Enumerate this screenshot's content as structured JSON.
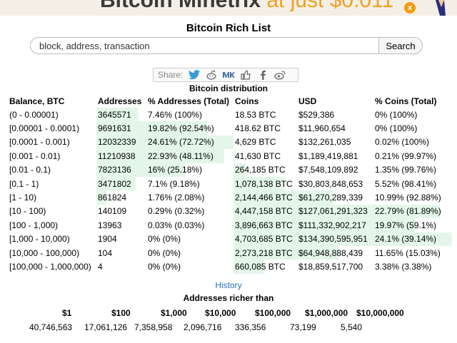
{
  "banner": {
    "text_main": "Bitcoin Minetrix",
    "text_accent": " at just $0.011",
    "close_symbol": "x"
  },
  "page_title": "Bitcoin Rich List",
  "search": {
    "placeholder": "block, address, transaction",
    "button_label": "Search"
  },
  "share": {
    "label": "Share:",
    "icons": [
      "twitter-icon",
      "reddit-icon",
      "vk-icon",
      "like-icon",
      "facebook-icon",
      "weibo-icon"
    ]
  },
  "distribution": {
    "caption": "Bitcoin distribution",
    "headers": [
      "Balance, BTC",
      "Addresses",
      "% Addresses (Total)",
      "Coins",
      "USD",
      "% Coins (Total)"
    ],
    "rows": [
      {
        "balance": "(0 - 0.00001)",
        "addresses": "3645571",
        "pct_addresses": "7.46% (100%)",
        "coins": "18.53 BTC",
        "usd": "$529,386",
        "pct_coins": "0% (100%)",
        "addr_share": 0.075,
        "coin_share": 0.0
      },
      {
        "balance": "[0.00001 - 0.0001)",
        "addresses": "9691631",
        "pct_addresses": "19.82% (92.54%)",
        "coins": "418.62 BTC",
        "usd": "$11,960,654",
        "pct_coins": "0% (100%)",
        "addr_share": 0.198,
        "coin_share": 0.0
      },
      {
        "balance": "[0.0001 - 0.001)",
        "addresses": "12032339",
        "pct_addresses": "24.61% (72.72%)",
        "coins": "4,629 BTC",
        "usd": "$132,261,035",
        "pct_coins": "0.02% (100%)",
        "addr_share": 0.246,
        "coin_share": 0.0002
      },
      {
        "balance": "[0.001 - 0.01)",
        "addresses": "11210938",
        "pct_addresses": "22.93% (48.11%)",
        "coins": "41,630 BTC",
        "usd": "$1,189,419,881",
        "pct_coins": "0.21% (99.97%)",
        "addr_share": 0.229,
        "coin_share": 0.0021
      },
      {
        "balance": "[0.01 - 0.1)",
        "addresses": "7823136",
        "pct_addresses": "16% (25.18%)",
        "coins": "264,185 BTC",
        "usd": "$7,548,109,892",
        "pct_coins": "1.35% (99.76%)",
        "addr_share": 0.16,
        "coin_share": 0.0135
      },
      {
        "balance": "[0.1 - 1)",
        "addresses": "3471802",
        "pct_addresses": "7.1% (9.18%)",
        "coins": "1,078,138 BTC",
        "usd": "$30,803,848,653",
        "pct_coins": "5.52% (98.41%)",
        "addr_share": 0.071,
        "coin_share": 0.0552
      },
      {
        "balance": "[1 - 10)",
        "addresses": "861824",
        "pct_addresses": "1.76% (2.08%)",
        "coins": "2,144,466 BTC",
        "usd": "$61,270,289,339",
        "pct_coins": "10.99% (92.88%)",
        "addr_share": 0.0176,
        "coin_share": 0.1099
      },
      {
        "balance": "[10 - 100)",
        "addresses": "140109",
        "pct_addresses": "0.29% (0.32%)",
        "coins": "4,447,158 BTC",
        "usd": "$127,061,291,323",
        "pct_coins": "22.79% (81.89%)",
        "addr_share": 0.0029,
        "coin_share": 0.2279
      },
      {
        "balance": "[100 - 1,000)",
        "addresses": "13963",
        "pct_addresses": "0.03% (0.03%)",
        "coins": "3,896,663 BTC",
        "usd": "$111,332,902,217",
        "pct_coins": "19.97% (59.1%)",
        "addr_share": 0.0003,
        "coin_share": 0.1997
      },
      {
        "balance": "[1,000 - 10,000)",
        "addresses": "1904",
        "pct_addresses": "0% (0%)",
        "coins": "4,703,685 BTC",
        "usd": "$134,390,595,951",
        "pct_coins": "24.1% (39.14%)",
        "addr_share": 0.0,
        "coin_share": 0.241
      },
      {
        "balance": "[10,000 - 100,000)",
        "addresses": "104",
        "pct_addresses": "0% (0%)",
        "coins": "2,273,218 BTC",
        "usd": "$64,948,888,439",
        "pct_coins": "11.65% (15.03%)",
        "addr_share": 0.0,
        "coin_share": 0.1165
      },
      {
        "balance": "[100,000 - 1,000,000)",
        "addresses": "4",
        "pct_addresses": "0% (0%)",
        "coins": "660,085 BTC",
        "usd": "$18,859,517,700",
        "pct_coins": "3.38% (3.38%)",
        "addr_share": 0.0,
        "coin_share": 0.0338
      }
    ]
  },
  "history_link": "History",
  "richer": {
    "caption": "Addresses richer than",
    "headers": [
      "$1",
      "$100",
      "$1,000",
      "$10,000",
      "$100,000",
      "$1,000,000",
      "$10,000,000"
    ],
    "values": [
      "40,746,563",
      "17,061,126",
      "7,358,958",
      "2,096,716",
      "336,356",
      "73,199",
      "5,540"
    ]
  },
  "colors": {
    "bar_fill": "#e4f6ea",
    "link": "#2a6ebb",
    "banner_accent": "#f0a020"
  }
}
